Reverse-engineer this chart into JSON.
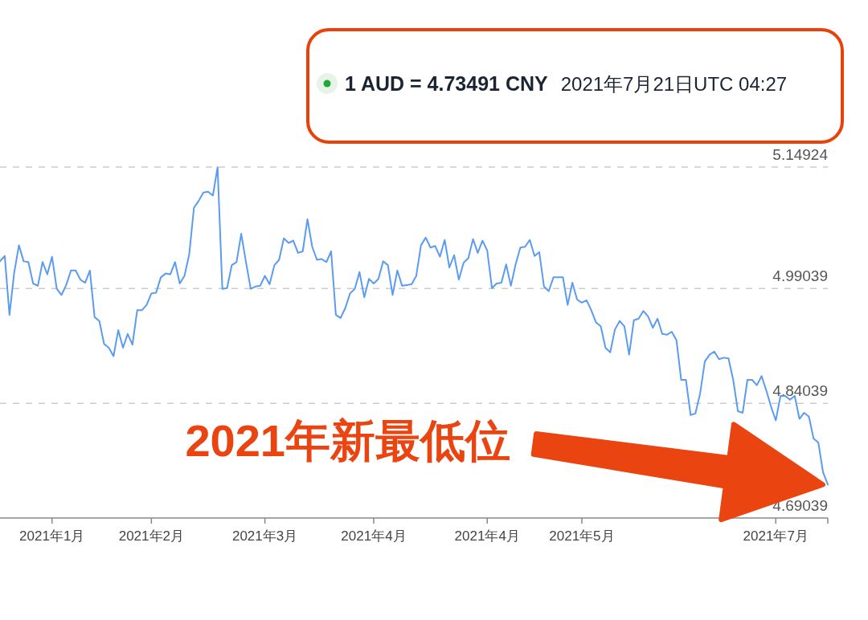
{
  "chart_data": {
    "type": "line",
    "title": "1 AUD = 4.73491 CNY",
    "subtitle": "2021年7月21日UTC 04:27",
    "categories": [
      null,
      null,
      null,
      null,
      null,
      null,
      null,
      null,
      null,
      null,
      null,
      "2021年1月",
      null,
      null,
      null,
      null,
      null,
      null,
      null,
      null,
      null,
      null,
      null,
      null,
      null,
      null,
      null,
      null,
      null,
      null,
      null,
      null,
      "2021年2月",
      null,
      null,
      null,
      null,
      null,
      null,
      null,
      null,
      null,
      null,
      null,
      null,
      null,
      null,
      null,
      null,
      null,
      null,
      null,
      null,
      null,
      null,
      null,
      "2021年3月",
      null,
      null,
      null,
      null,
      null,
      null,
      null,
      null,
      null,
      null,
      null,
      null,
      null,
      null,
      null,
      null,
      null,
      null,
      null,
      null,
      null,
      null,
      "2021年4月",
      null,
      null,
      null,
      null,
      null,
      null,
      null,
      null,
      null,
      null,
      null,
      null,
      null,
      null,
      null,
      null,
      null,
      null,
      null,
      null,
      null,
      null,
      null,
      "2021年4月",
      null,
      null,
      null,
      null,
      null,
      null,
      null,
      null,
      null,
      null,
      null,
      null,
      null,
      null,
      null,
      null,
      null,
      null,
      null,
      "2021年5月",
      null,
      null,
      null,
      null,
      null,
      null,
      null,
      null,
      null,
      null,
      null,
      null,
      null,
      null,
      null,
      null,
      null,
      null,
      null,
      null,
      null,
      null,
      null,
      null,
      null,
      null,
      null,
      null,
      null,
      null,
      null,
      null,
      null,
      null,
      null,
      null,
      null,
      null,
      null,
      null,
      "2021年7月",
      null,
      null,
      null,
      null,
      null,
      null,
      null,
      null,
      null,
      null,
      null
    ],
    "ylim": [
      4.69039,
      5.14924
    ],
    "yticks": [
      4.69039,
      4.84039,
      4.99039,
      5.14924
    ],
    "grid": "y",
    "annotations": [
      "2021年新最低位"
    ],
    "series": [
      {
        "color": "#5b9bf0",
        "values": [
          5.026,
          5.033,
          4.956,
          5.011,
          5.047,
          5.026,
          5.025,
          4.997,
          4.994,
          5.025,
          5.009,
          5.032,
          4.99,
          4.982,
          4.995,
          5.014,
          5.014,
          5.002,
          4.998,
          5.014,
          4.953,
          4.948,
          4.918,
          4.913,
          4.902,
          4.936,
          4.913,
          4.931,
          4.917,
          4.962,
          4.962,
          4.969,
          4.984,
          4.985,
          5.005,
          5.01,
          5.009,
          5.025,
          4.997,
          5.007,
          5.035,
          5.096,
          5.105,
          5.116,
          5.117,
          5.112,
          5.149,
          4.99,
          4.991,
          5.021,
          5.025,
          5.062,
          5.025,
          4.99,
          4.993,
          4.994,
          5.007,
          4.996,
          5.021,
          5.028,
          5.056,
          5.05,
          5.053,
          5.037,
          5.039,
          5.081,
          5.045,
          5.028,
          5.029,
          5.025,
          5.039,
          4.956,
          4.952,
          4.965,
          4.984,
          4.99,
          5.012,
          4.979,
          5.003,
          4.997,
          5.003,
          5.026,
          5.021,
          4.982,
          5.014,
          4.994,
          4.995,
          4.996,
          5.007,
          5.047,
          5.057,
          5.044,
          5.046,
          5.032,
          5.054,
          5.018,
          5.034,
          5.002,
          5.024,
          5.03,
          5.055,
          5.037,
          5.053,
          5.04,
          4.991,
          4.997,
          4.998,
          5.022,
          4.994,
          5.022,
          5.044,
          5.045,
          5.054,
          5.033,
          5.038,
          4.993,
          4.987,
          5.005,
          5.005,
          5.005,
          4.969,
          4.998,
          4.976,
          4.972,
          4.975,
          4.962,
          4.946,
          4.941,
          4.913,
          4.907,
          4.937,
          4.948,
          4.941,
          4.904,
          4.949,
          4.951,
          4.961,
          4.954,
          4.939,
          4.951,
          4.931,
          4.93,
          4.934,
          4.923,
          4.871,
          4.871,
          4.825,
          4.827,
          4.853,
          4.895,
          4.904,
          4.908,
          4.898,
          4.9,
          4.899,
          4.871,
          4.83,
          4.828,
          4.871,
          4.871,
          4.864,
          4.876,
          4.857,
          4.836,
          4.818,
          4.85,
          4.85,
          4.845,
          4.85,
          4.82,
          4.828,
          4.823,
          4.794,
          4.789,
          4.75,
          4.734
        ]
      }
    ]
  }
}
